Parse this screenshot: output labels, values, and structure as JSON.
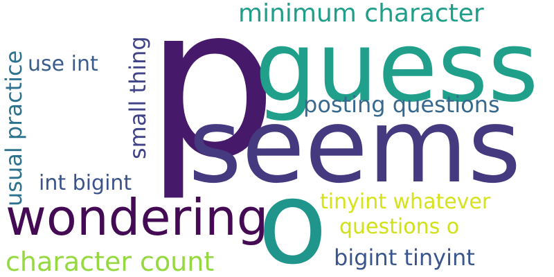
{
  "words": [
    {
      "text": "p",
      "color": "#46196a"
    },
    {
      "text": "guess",
      "color": "#20a08a"
    },
    {
      "text": "seems",
      "color": "#45397f"
    },
    {
      "text": "wondering",
      "color": "#440b54"
    },
    {
      "text": "o",
      "color": "#20958c"
    },
    {
      "text": "minimum character",
      "color": "#1f9e89"
    },
    {
      "text": "posting questions",
      "color": "#37688d"
    },
    {
      "text": "use int",
      "color": "#3a5c8c"
    },
    {
      "text": "int bigint",
      "color": "#3b528b"
    },
    {
      "text": "tinyint whatever",
      "color": "#d6e21a"
    },
    {
      "text": "questions o",
      "color": "#d0e11c"
    },
    {
      "text": "character count",
      "color": "#95d840"
    },
    {
      "text": "bigint tinyint",
      "color": "#3a548c"
    },
    {
      "text": "small thing",
      "color": "#404387"
    },
    {
      "text": "usual practice",
      "color": "#2c718e"
    }
  ]
}
